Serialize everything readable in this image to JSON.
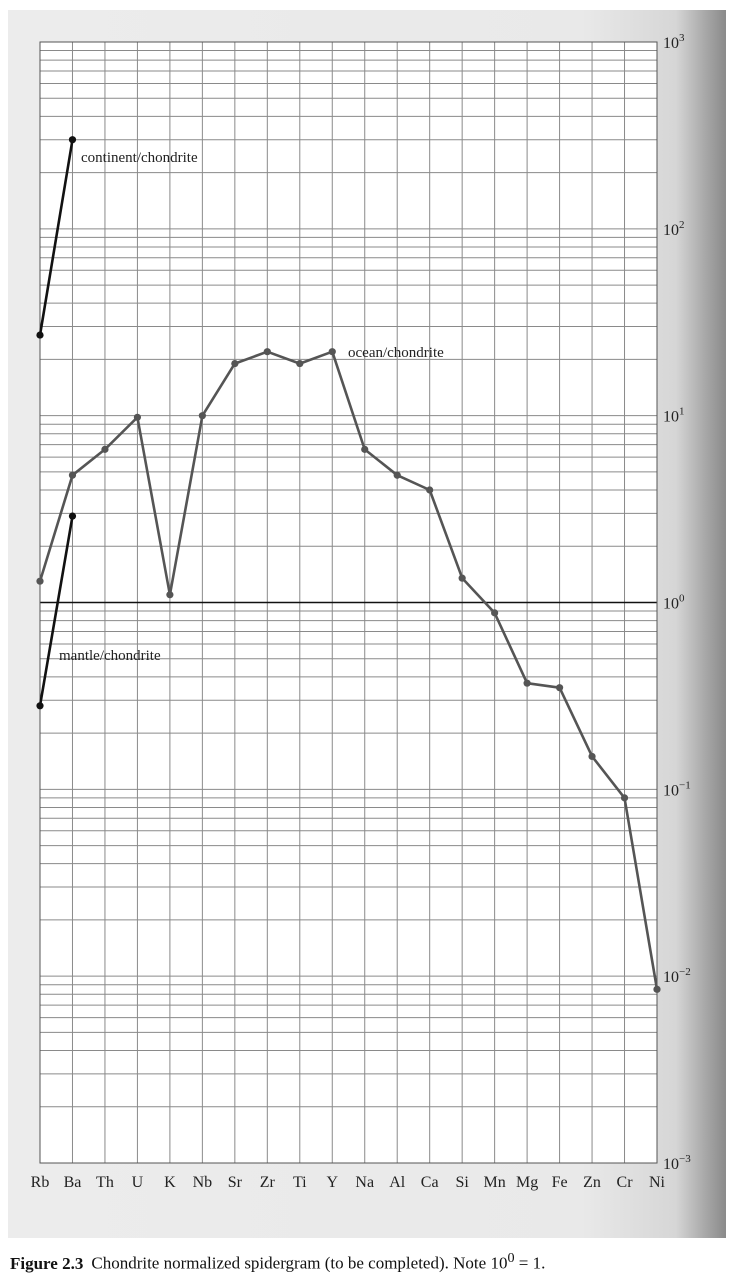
{
  "chart_data": {
    "type": "line",
    "categories": [
      "Rb",
      "Ba",
      "Th",
      "U",
      "K",
      "Nb",
      "Sr",
      "Zr",
      "Ti",
      "Y",
      "Na",
      "Al",
      "Ca",
      "Si",
      "Mn",
      "Mg",
      "Fe",
      "Zn",
      "Cr",
      "Ni"
    ],
    "y_scale": "log",
    "ylim": [
      0.001,
      1000
    ],
    "yticks": [
      {
        "base": "10",
        "exp": "3"
      },
      {
        "base": "10",
        "exp": "2"
      },
      {
        "base": "10",
        "exp": "1"
      },
      {
        "base": "10",
        "exp": "0"
      },
      {
        "base": "10",
        "exp": "−1"
      },
      {
        "base": "10",
        "exp": "−2"
      },
      {
        "base": "10",
        "exp": "−3"
      }
    ],
    "grid": true,
    "y_axis_position": "right",
    "series": [
      {
        "key": "ocean",
        "color": "#555555",
        "x": [
          "Rb",
          "Ba",
          "Th",
          "U",
          "K",
          "Nb",
          "Sr",
          "Zr",
          "Ti",
          "Y",
          "Na",
          "Al",
          "Ca",
          "Si",
          "Mn",
          "Mg",
          "Fe",
          "Zn",
          "Cr",
          "Ni"
        ],
        "values": [
          1.3,
          4.8,
          6.6,
          9.8,
          1.1,
          10,
          19,
          22,
          19,
          22,
          6.6,
          4.8,
          4.0,
          1.35,
          0.88,
          0.37,
          0.35,
          0.15,
          0.09,
          0.0085
        ]
      },
      {
        "key": "continent",
        "color": "#111111",
        "x": [
          "Rb",
          "Ba"
        ],
        "values": [
          27,
          300
        ]
      },
      {
        "key": "mantle",
        "color": "#111111",
        "x": [
          "Rb",
          "Ba"
        ],
        "values": [
          0.28,
          2.9
        ]
      }
    ],
    "annotations": [
      "continent/chondrite",
      "ocean/chondrite",
      "mantle/chondrite"
    ]
  },
  "caption": {
    "label": "Figure 2.3",
    "text": "Chondrite normalized spidergram (to be completed). Note ",
    "base": "10",
    "exponent": "0",
    "tail": " = 1."
  }
}
